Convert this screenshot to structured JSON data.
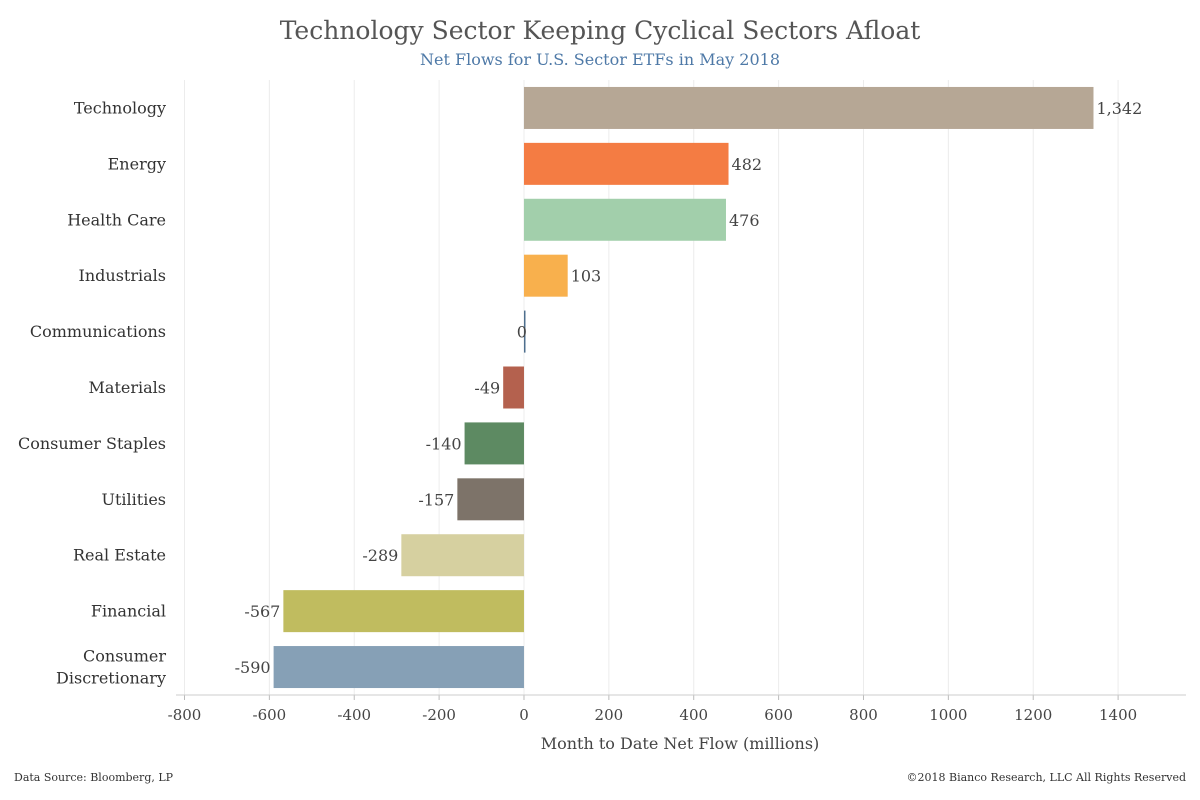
{
  "header": {
    "title": "Technology Sector Keeping Cyclical Sectors Afloat",
    "subtitle": "Net Flows for U.S. Sector ETFs in May 2018"
  },
  "footer": {
    "source": "Data Source: Bloomberg, LP",
    "copyright": "©2018 Bianco Research, LLC  All Rights Reserved"
  },
  "chart_data": {
    "type": "bar",
    "orientation": "horizontal",
    "title": "Technology Sector Keeping Cyclical Sectors Afloat",
    "subtitle": "Net Flows for U.S. Sector ETFs in May 2018",
    "xlabel": "Month to Date Net Flow (millions)",
    "ylabel": "",
    "xlim": [
      -820,
      1560
    ],
    "xticks": [
      -800,
      -600,
      -400,
      -200,
      0,
      200,
      400,
      600,
      800,
      1000,
      1200,
      1400
    ],
    "grid": true,
    "categories": [
      "Technology",
      "Energy",
      "Health Care",
      "Industrials",
      "Communications",
      "Materials",
      "Consumer Staples",
      "Utilities",
      "Real Estate",
      "Financial",
      "Consumer Discretionary"
    ],
    "category_lines": [
      [
        "Technology"
      ],
      [
        "Energy"
      ],
      [
        "Health Care"
      ],
      [
        "Industrials"
      ],
      [
        "Communications"
      ],
      [
        "Materials"
      ],
      [
        "Consumer Staples"
      ],
      [
        "Utilities"
      ],
      [
        "Real Estate"
      ],
      [
        "Financial"
      ],
      [
        "Consumer",
        "Discretionary"
      ]
    ],
    "values": [
      1342,
      482,
      476,
      103,
      0,
      -49,
      -140,
      -157,
      -289,
      -567,
      -590
    ],
    "value_labels": [
      "1,342",
      "482",
      "476",
      "103",
      "0",
      "-49",
      "-140",
      "-157",
      "-289",
      "-567",
      "-590"
    ],
    "colors": [
      "#b6a795",
      "#f47c43",
      "#a2cfab",
      "#f8b04d",
      "#4e6f8e",
      "#b4614e",
      "#5d8a62",
      "#7d7369",
      "#d6d0a0",
      "#c0bc5f",
      "#86a0b6"
    ]
  }
}
